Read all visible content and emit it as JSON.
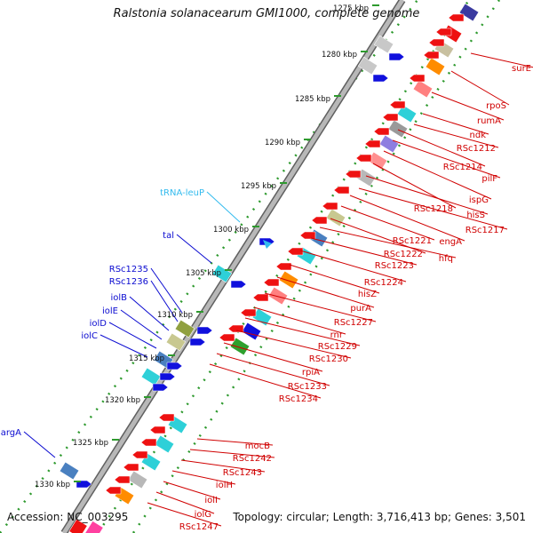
{
  "title": "Ralstonia solanacearum GMI1000, complete genome",
  "accession": "Accession: NC_003295",
  "summary": "Topology: circular; Length: 3,716,413 bp; Genes: 3,501",
  "colors": {
    "backbone": "#9a9a9a",
    "dots": "#2e9a2e",
    "forward_label": "#0a0ad0",
    "reverse_label": "#d00000",
    "trna_label": "#33bbee",
    "tick_label": "#111111",
    "red_gene": "#ee1111",
    "blue_gene": "#1010dd",
    "cyan_box": "#2ed0d8"
  },
  "ticks": [
    "1275 kbp",
    "1280 kbp",
    "1285 kbp",
    "1290 kbp",
    "1295 kbp",
    "1300 kbp",
    "1305 kbp",
    "1310 kbp",
    "1315 kbp",
    "1320 kbp",
    "1325 kbp",
    "1330 kbp"
  ],
  "forward_labels": [
    "tRNA-leuP",
    "tal",
    "RSc1235",
    "RSc1236",
    "iolB",
    "iolE",
    "iolD",
    "iolC",
    "argA"
  ],
  "reverse_labels": [
    "surE",
    "rpoS",
    "rumA",
    "ndk",
    "RSc1212",
    "RSc1214",
    "pilF",
    "ispG",
    "RSc1218",
    "hisS",
    "RSc1217",
    "engA",
    "RSc1221",
    "RSc1222",
    "hfq",
    "RSc1223",
    "RSc1224",
    "hisZ",
    "purA",
    "RSc1227",
    "rnr",
    "RSc1229",
    "RSc1230",
    "rpiA",
    "RSc1233",
    "RSc1234",
    "mocB",
    "RSc1242",
    "RSc1243",
    "iolH",
    "iolI",
    "iolG",
    "RSc1247"
  ]
}
